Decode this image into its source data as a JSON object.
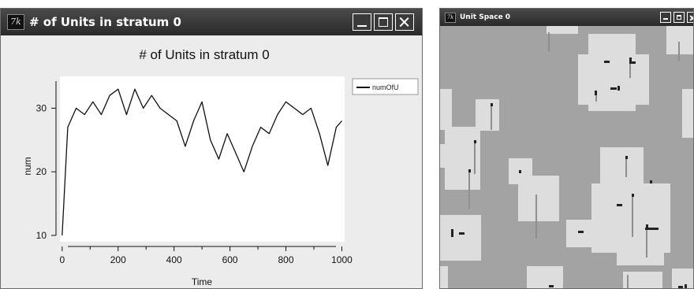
{
  "window_plot": {
    "title": "# of Units in stratum 0",
    "icon": "app-logo-icon",
    "app_icon_text": "7k"
  },
  "window_space": {
    "title": "Unit Space 0",
    "icon": "app-logo-icon",
    "app_icon_text": "7k"
  },
  "chart_data": {
    "type": "line",
    "title": "# of Units in stratum 0",
    "xlabel": "Time",
    "ylabel": "num",
    "xlim": [
      -8,
      1010
    ],
    "ylim": [
      9,
      35
    ],
    "xticks": [
      0,
      200,
      400,
      600,
      800,
      1000
    ],
    "xtick_labels": [
      "0",
      "200",
      "400",
      "600",
      "800",
      "1000"
    ],
    "yticks": [
      10,
      20,
      30
    ],
    "ytick_labels": [
      "10",
      "20",
      "30"
    ],
    "grid": false,
    "legend_position": "top-right",
    "series": [
      {
        "name": "numOfU",
        "color": "#111111",
        "x": [
          0,
          20,
          50,
          80,
          110,
          140,
          170,
          200,
          230,
          260,
          290,
          320,
          350,
          380,
          410,
          440,
          470,
          500,
          530,
          560,
          590,
          620,
          650,
          680,
          710,
          740,
          770,
          800,
          830,
          860,
          890,
          920,
          950,
          980,
          1000
        ],
        "y": [
          10,
          27,
          30,
          29,
          31,
          29,
          32,
          33,
          29,
          33,
          30,
          32,
          30,
          29,
          28,
          24,
          28,
          31,
          25,
          22,
          26,
          23,
          20,
          24,
          27,
          26,
          29,
          31,
          30,
          29,
          30,
          26,
          21,
          27,
          28
        ]
      }
    ]
  },
  "colors": {
    "chrome": "#ececec",
    "titlebar": "#2f2f2f",
    "space_background": "#a3a3a3",
    "territory": "#dddddd",
    "unit": "#222222",
    "track": "#8f8f8f"
  }
}
